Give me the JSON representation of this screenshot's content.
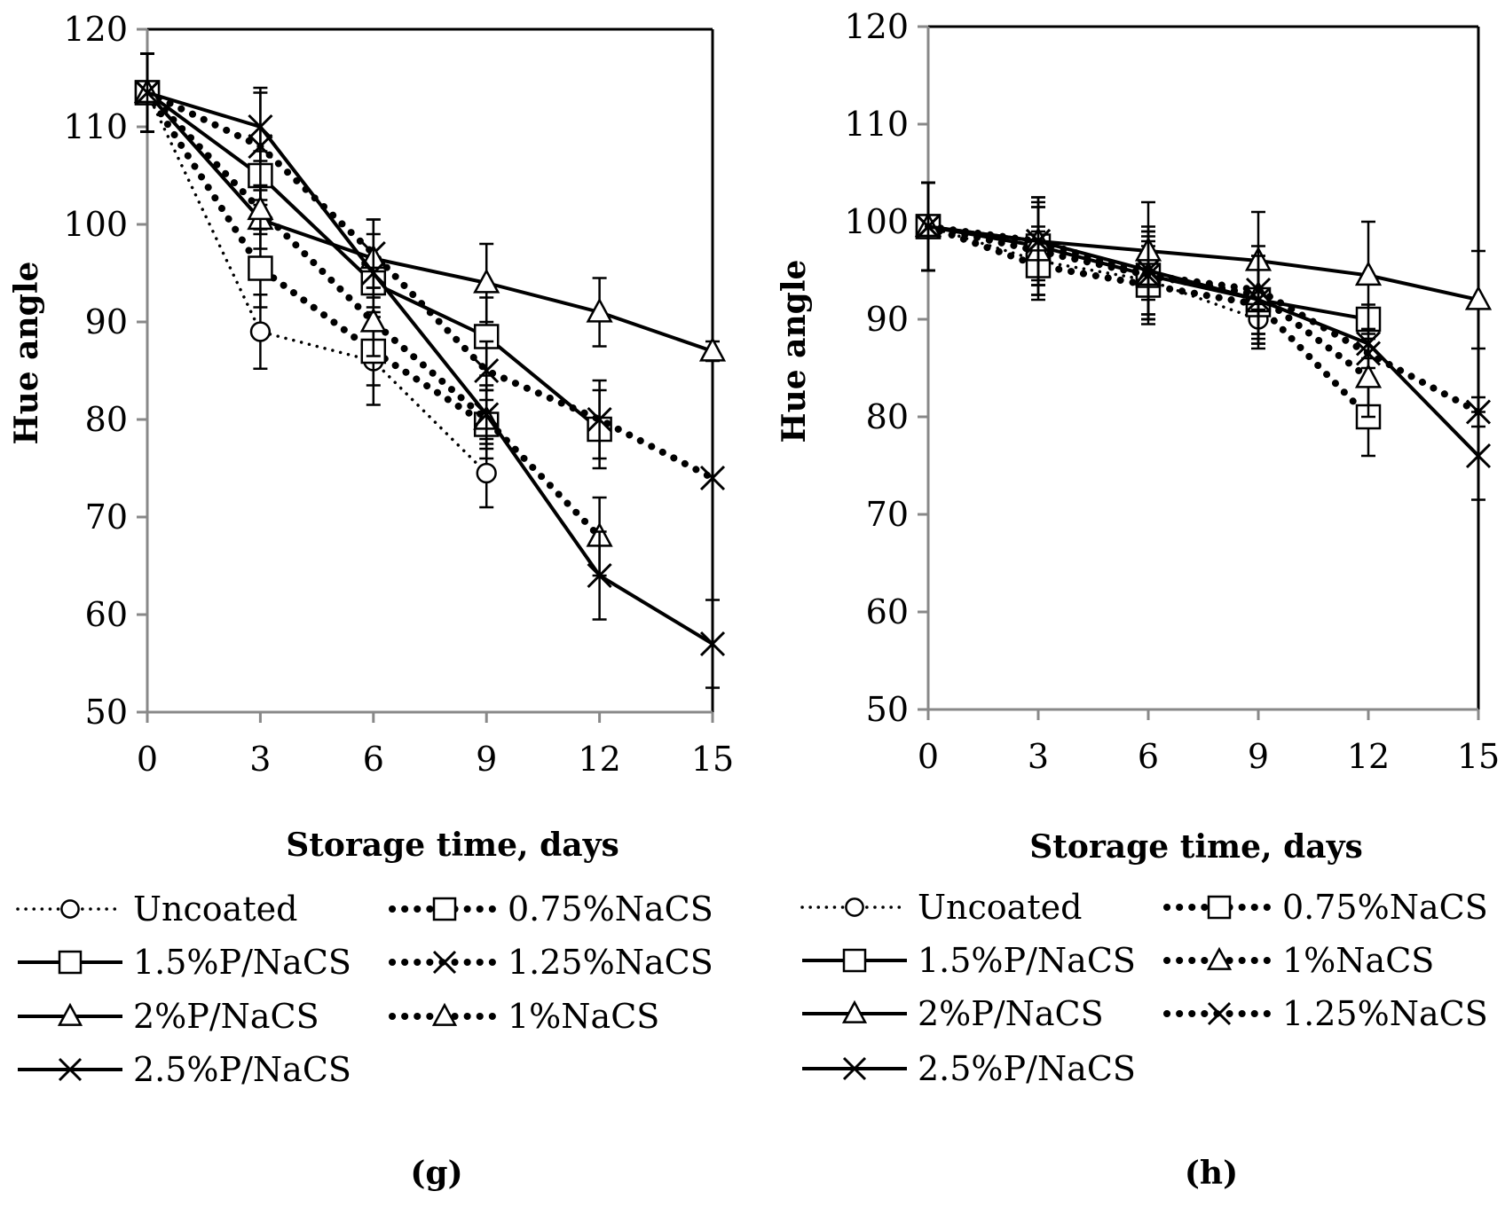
{
  "chart_data": [
    {
      "type": "line",
      "panel_label": "(g)",
      "xlabel": "Storage time, days",
      "ylabel": "Hue angle",
      "x_ticks": [
        0,
        3,
        6,
        9,
        12,
        15
      ],
      "y_ticks": [
        50,
        60,
        70,
        80,
        90,
        100,
        110,
        120
      ],
      "xlim": [
        0,
        15
      ],
      "ylim": [
        50,
        120
      ],
      "legend_position": "bottom",
      "series": [
        {
          "name": "Uncoated",
          "line": "dotted-thin",
          "marker": "circle",
          "x": [
            0,
            3,
            6,
            9
          ],
          "y": [
            113.5,
            89.0,
            86.0,
            74.5
          ],
          "err": [
            4.0,
            3.8,
            4.5,
            3.5
          ]
        },
        {
          "name": "0.75%NaCS",
          "line": "dotted-thick",
          "marker": "square",
          "x": [
            0,
            3,
            6,
            9
          ],
          "y": [
            113.5,
            95.5,
            87.0,
            79.5
          ],
          "err": [
            4.0,
            4.0,
            3.5,
            3.5
          ]
        },
        {
          "name": "1.5%P/NaCS",
          "line": "solid",
          "marker": "square",
          "x": [
            0,
            3,
            6,
            9,
            12
          ],
          "y": [
            113.5,
            105.0,
            94.0,
            88.5,
            79.0
          ],
          "err": [
            4.0,
            2.5,
            2.5,
            4.0,
            4.0
          ]
        },
        {
          "name": "1.25%NaCS",
          "line": "dotted-thick",
          "marker": "x",
          "x": [
            0,
            3,
            6,
            9,
            12,
            15
          ],
          "y": [
            113.5,
            108.0,
            97.0,
            85.0,
            80.0,
            74.0
          ],
          "err": [
            4.0,
            6.0,
            3.5,
            3.0,
            4.0,
            0
          ]
        },
        {
          "name": "2%P/NaCS",
          "line": "solid",
          "marker": "triangle",
          "x": [
            0,
            3,
            6,
            9,
            12,
            15
          ],
          "y": [
            113.5,
            100.5,
            96.5,
            94.0,
            91.0,
            87.0
          ],
          "err": [
            4.0,
            3.0,
            4.0,
            4.0,
            3.5,
            1.0
          ]
        },
        {
          "name": "1%NaCS",
          "line": "dotted-thick",
          "marker": "triangle",
          "x": [
            0,
            3,
            6,
            9,
            12
          ],
          "y": [
            113.5,
            101.5,
            90.0,
            80.0,
            68.0
          ],
          "err": [
            4.0,
            2.5,
            3.5,
            3.0,
            4.0
          ]
        },
        {
          "name": "2.5%P/NaCS",
          "line": "solid",
          "marker": "x",
          "x": [
            0,
            3,
            6,
            9,
            12,
            15
          ],
          "y": [
            113.5,
            110.0,
            95.0,
            80.5,
            64.0,
            57.0
          ],
          "err": [
            4.0,
            3.5,
            4.0,
            3.0,
            4.5,
            4.5
          ]
        }
      ],
      "legend_order": [
        "Uncoated",
        "0.75%NaCS",
        "1.5%P/NaCS",
        "1.25%NaCS",
        "2%P/NaCS",
        "1%NaCS",
        "2.5%P/NaCS"
      ]
    },
    {
      "type": "line",
      "panel_label": "(h)",
      "xlabel": "Storage time, days",
      "ylabel": "Hue angle",
      "x_ticks": [
        0,
        3,
        6,
        9,
        12,
        15
      ],
      "y_ticks": [
        50,
        60,
        70,
        80,
        90,
        100,
        110,
        120
      ],
      "xlim": [
        0,
        15
      ],
      "ylim": [
        50,
        120
      ],
      "legend_position": "bottom",
      "series": [
        {
          "name": "Uncoated",
          "line": "dotted-thin",
          "marker": "circle",
          "x": [
            0,
            3,
            6,
            9
          ],
          "y": [
            99.5,
            96.0,
            94.0,
            90.0
          ],
          "err": [
            4.5,
            3.5,
            4.0,
            3.0
          ]
        },
        {
          "name": "0.75%NaCS",
          "line": "dotted-thick",
          "marker": "square",
          "x": [
            0,
            3,
            6,
            9,
            12
          ],
          "y": [
            99.5,
            95.5,
            93.5,
            91.5,
            80.0
          ],
          "err": [
            4.5,
            3.5,
            4.0,
            4.0,
            4.0
          ]
        },
        {
          "name": "1.5%P/NaCS",
          "line": "solid",
          "marker": "square",
          "x": [
            0,
            3,
            6,
            9,
            12
          ],
          "y": [
            99.5,
            97.5,
            94.5,
            92.0,
            90.0
          ],
          "err": [
            4.5,
            4.0,
            4.5,
            4.0,
            1.5
          ]
        },
        {
          "name": "1%NaCS",
          "line": "dotted-thick",
          "marker": "triangle",
          "x": [
            0,
            3,
            6,
            9,
            12
          ],
          "y": [
            99.5,
            97.0,
            94.5,
            92.5,
            84.0
          ],
          "err": [
            4.5,
            4.5,
            4.0,
            4.0,
            4.0
          ]
        },
        {
          "name": "2%P/NaCS",
          "line": "solid",
          "marker": "triangle",
          "x": [
            0,
            3,
            6,
            9,
            12,
            15
          ],
          "y": [
            99.5,
            98.0,
            97.0,
            96.0,
            94.5,
            92.0
          ],
          "err": [
            4.5,
            4.5,
            5.0,
            5.0,
            5.5,
            5.0
          ]
        },
        {
          "name": "1.25%NaCS",
          "line": "dotted-thick",
          "marker": "x",
          "x": [
            0,
            3,
            6,
            9,
            12,
            15
          ],
          "y": [
            99.5,
            98.0,
            94.5,
            93.0,
            86.5,
            80.5
          ],
          "err": [
            4.5,
            4.5,
            4.5,
            4.5,
            1.5,
            1.5
          ]
        },
        {
          "name": "2.5%P/NaCS",
          "line": "solid",
          "marker": "x",
          "x": [
            0,
            3,
            6,
            9,
            12,
            15
          ],
          "y": [
            99.5,
            98.0,
            95.0,
            92.0,
            87.5,
            76.0
          ],
          "err": [
            4.5,
            4.0,
            4.5,
            4.5,
            1.5,
            4.5
          ]
        }
      ],
      "legend_order": [
        "Uncoated",
        "0.75%NaCS",
        "1.5%P/NaCS",
        "1%NaCS",
        "2%P/NaCS",
        "1.25%NaCS",
        "2.5%P/NaCS"
      ]
    }
  ]
}
